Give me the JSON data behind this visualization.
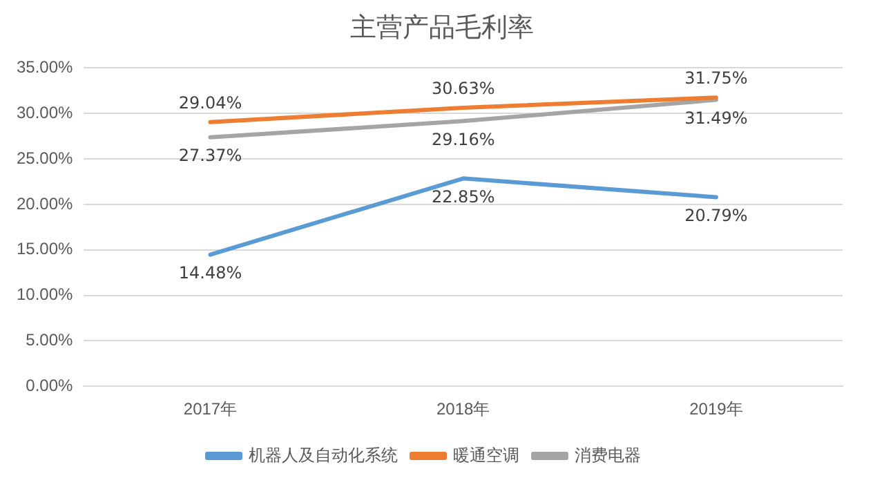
{
  "chart_data": {
    "type": "line",
    "title": "主营产品毛利率",
    "categories": [
      "2017年",
      "2018年",
      "2019年"
    ],
    "series": [
      {
        "name": "机器人及自动化系统",
        "color": "#5b9bd5",
        "values": [
          14.48,
          22.85,
          20.79
        ],
        "value_labels": [
          "14.48%",
          "22.85%",
          "20.79%"
        ]
      },
      {
        "name": "暖通空调",
        "color": "#ed7d31",
        "values": [
          29.04,
          30.63,
          31.75
        ],
        "value_labels": [
          "29.04%",
          "30.63%",
          "31.75%"
        ]
      },
      {
        "name": "消费电器",
        "color": "#a5a5a5",
        "values": [
          27.37,
          29.16,
          31.49
        ],
        "value_labels": [
          "27.37%",
          "29.16%",
          "31.49%"
        ]
      }
    ],
    "ylim": [
      0,
      35
    ],
    "yticks": [
      {
        "value": 0,
        "label": "0.00%"
      },
      {
        "value": 5,
        "label": "5.00%"
      },
      {
        "value": 10,
        "label": "10.00%"
      },
      {
        "value": 15,
        "label": "15.00%"
      },
      {
        "value": 20,
        "label": "20.00%"
      },
      {
        "value": 25,
        "label": "25.00%"
      },
      {
        "value": 30,
        "label": "30.00%"
      },
      {
        "value": 35,
        "label": "35.00%"
      }
    ],
    "grid": "y",
    "legend": "bottom",
    "marker": "none",
    "line_style": "solid"
  }
}
